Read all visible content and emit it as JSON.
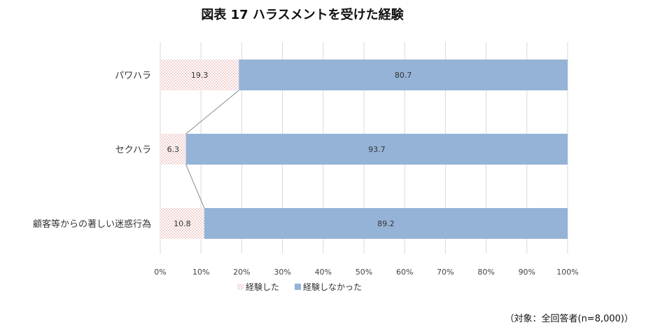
{
  "chart_data": {
    "type": "bar",
    "orientation": "horizontal",
    "stacked": "percent",
    "title": "図表 17 ハラスメントを受けた経験",
    "categories": [
      "パワハラ",
      "セクハラ",
      "顧客等からの著しい迷惑行為"
    ],
    "series": [
      {
        "name": "経験した",
        "values": [
          19.3,
          6.3,
          10.8
        ],
        "color": "#f0a8a8",
        "pattern": "dotted"
      },
      {
        "name": "経験しなかった",
        "values": [
          80.7,
          93.7,
          89.2
        ],
        "color": "#95b3d7",
        "pattern": "solid"
      }
    ],
    "data_labels": {
      "s0": [
        "19.3",
        "6.3",
        "10.8"
      ],
      "s1": [
        "80.7",
        "93.7",
        "89.2"
      ]
    },
    "xlim": [
      0,
      100
    ],
    "x_ticks": [
      "0%",
      "10%",
      "20%",
      "30%",
      "40%",
      "50%",
      "60%",
      "70%",
      "80%",
      "90%",
      "100%"
    ],
    "grid": true,
    "series_lines": true,
    "legend": "bottom",
    "note": "（対象：全回答者(n=8,000)）"
  }
}
